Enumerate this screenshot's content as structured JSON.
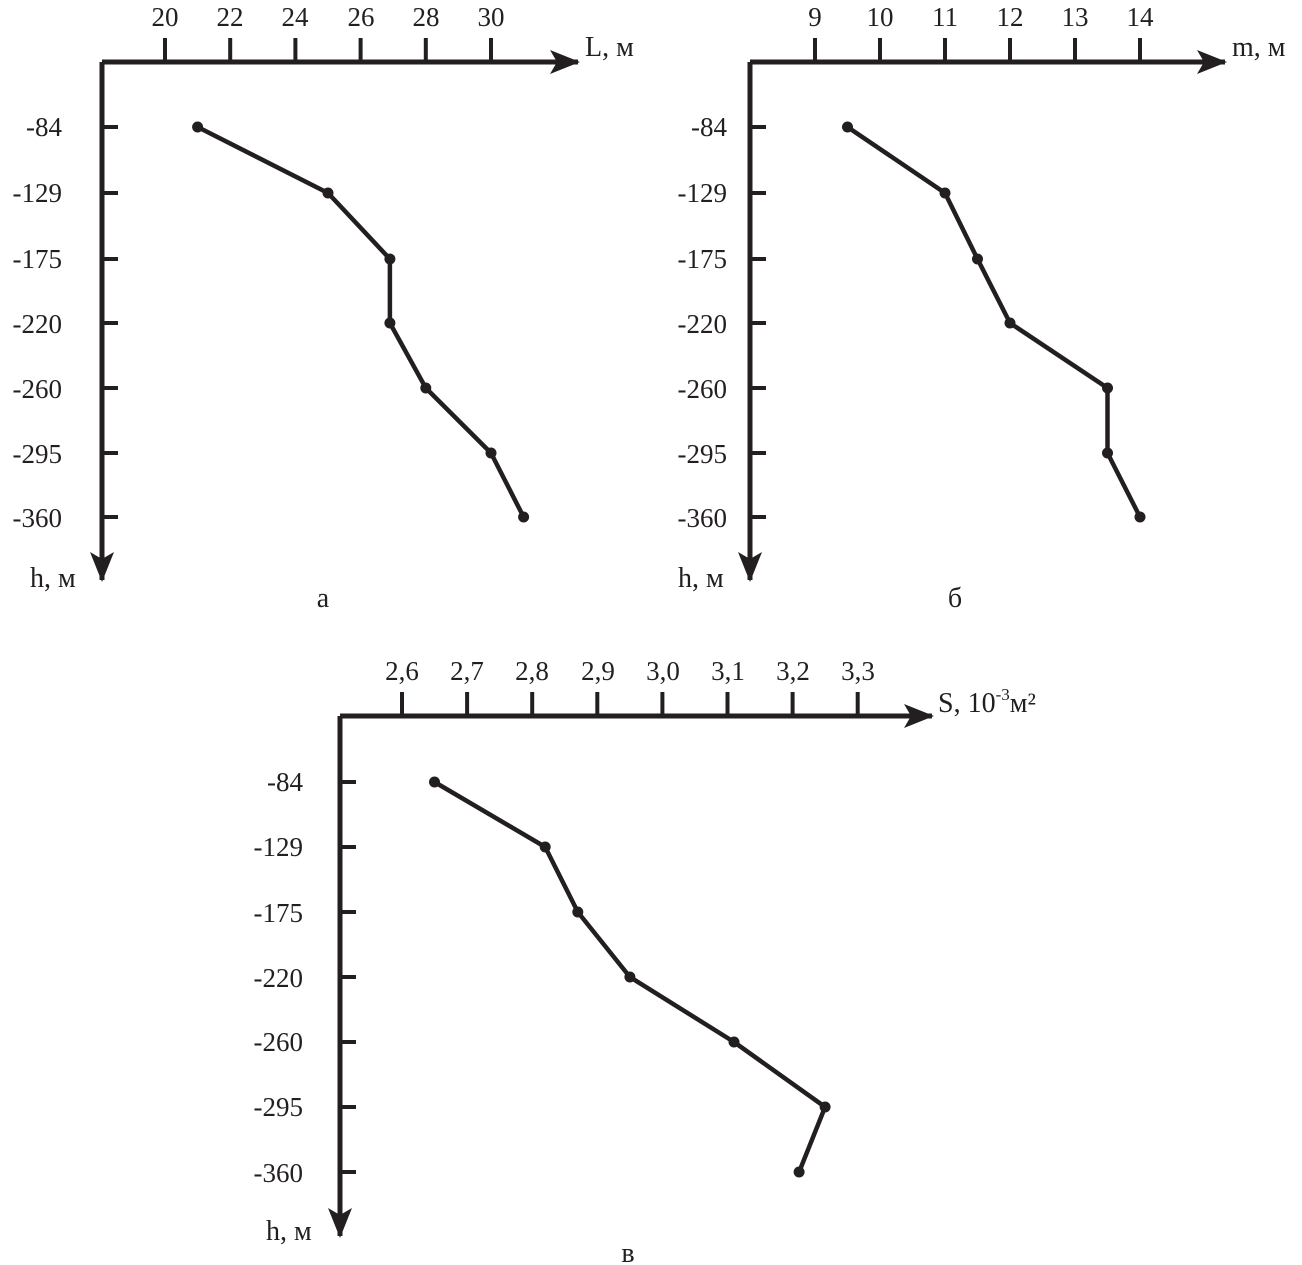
{
  "style": {
    "ink": "#231f20",
    "background": "#ffffff"
  },
  "chart_data": [
    {
      "type": "line",
      "panel_label": "а",
      "xlabel": "L, м",
      "xlabel_sup": "",
      "xlabel_tail": "",
      "ylabel": "h, м",
      "x_ticks": [
        "20",
        "22",
        "24",
        "26",
        "28",
        "30"
      ],
      "x_tick_values": [
        20,
        22,
        24,
        26,
        28,
        30
      ],
      "y_ticks": [
        "-84",
        "-129",
        "-175",
        "-220",
        "-260",
        "-295",
        "-360"
      ],
      "x": [
        21.0,
        25.0,
        26.9,
        26.9,
        28.0,
        30.0,
        31.0
      ],
      "y": [
        -84,
        -129,
        -175,
        -220,
        -260,
        -295,
        -360
      ],
      "grid": false,
      "legend": "none"
    },
    {
      "type": "line",
      "panel_label": "б",
      "xlabel": "m, м",
      "xlabel_sup": "",
      "xlabel_tail": "",
      "ylabel": "h, м",
      "x_ticks": [
        "9",
        "10",
        "11",
        "12",
        "13",
        "14"
      ],
      "x_tick_values": [
        9,
        10,
        11,
        12,
        13,
        14
      ],
      "y_ticks": [
        "-84",
        "-129",
        "-175",
        "-220",
        "-260",
        "-295",
        "-360"
      ],
      "x": [
        9.5,
        11.0,
        11.5,
        12.0,
        13.5,
        13.5,
        14.0
      ],
      "y": [
        -84,
        -129,
        -175,
        -220,
        -260,
        -295,
        -360
      ],
      "grid": false,
      "legend": "none"
    },
    {
      "type": "line",
      "panel_label": "в",
      "xlabel": "S, 10",
      "xlabel_sup": "-3",
      "xlabel_tail": "м²",
      "ylabel": "h, м",
      "x_ticks": [
        "2,6",
        "2,7",
        "2,8",
        "2,9",
        "3,0",
        "3,1",
        "3,2",
        "3,3"
      ],
      "x_tick_values": [
        2.6,
        2.7,
        2.8,
        2.9,
        3.0,
        3.1,
        3.2,
        3.3
      ],
      "y_ticks": [
        "-84",
        "-129",
        "-175",
        "-220",
        "-260",
        "-295",
        "-360"
      ],
      "x": [
        2.65,
        2.82,
        2.87,
        2.95,
        3.11,
        3.25,
        3.21
      ],
      "y": [
        -84,
        -129,
        -175,
        -220,
        -260,
        -295,
        -360
      ],
      "grid": false,
      "legend": "none"
    }
  ]
}
